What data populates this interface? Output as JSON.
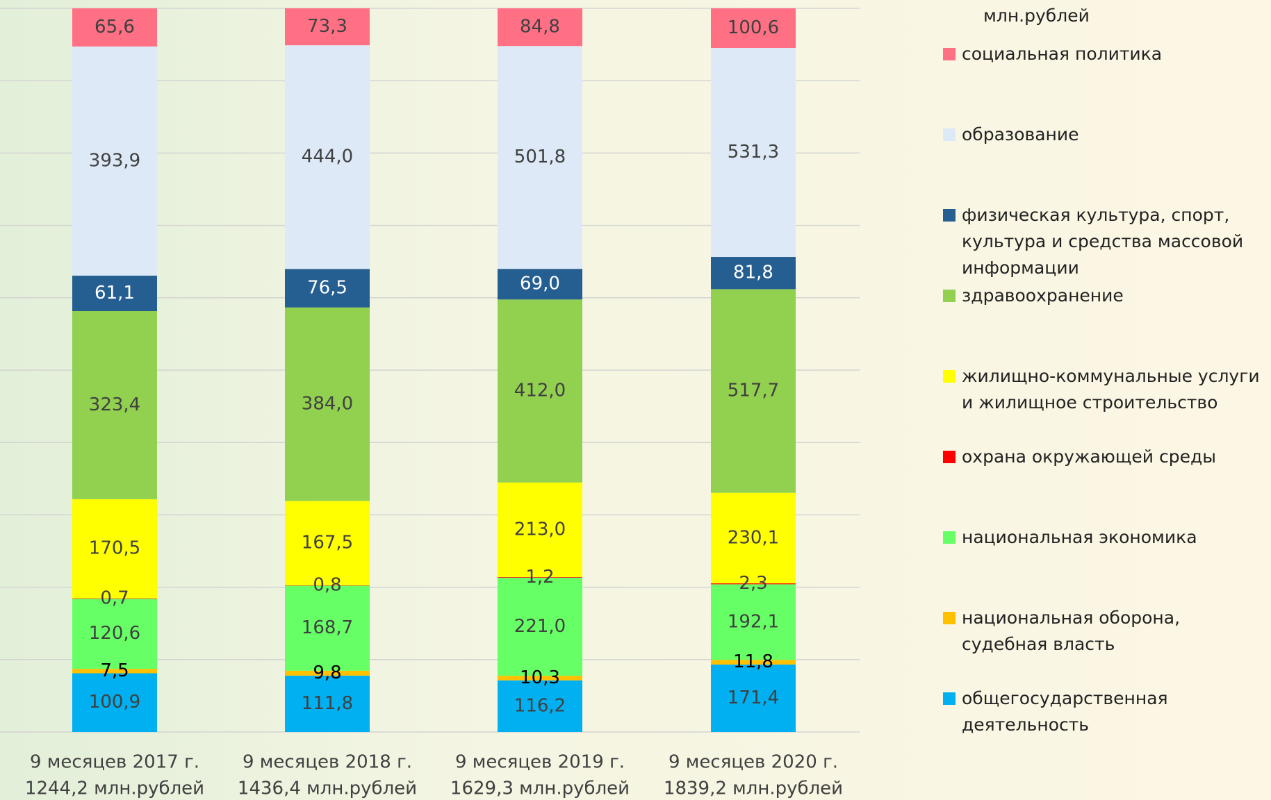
{
  "chart_data": {
    "type": "bar",
    "stacked": "percent",
    "unit": "млн.рублей",
    "categories": [
      "9 месяцев 2017 г.",
      "9 месяцев 2018 г.",
      "9 месяцев 2019 г.",
      "9 месяцев 2020 г."
    ],
    "category_totals": [
      "1244,2 млн.рублей",
      "1436,4 млн.рублей",
      "1629,3 млн.рублей",
      "1839,2 млн.рублей"
    ],
    "ylim": [
      0,
      100
    ],
    "yticks": [
      0,
      10,
      20,
      30,
      40,
      50,
      60,
      70,
      80,
      90,
      100
    ],
    "grid": true,
    "tick_labels": false,
    "legend": "right",
    "series": [
      {
        "name": "общегосударственная деятельность",
        "color": "#00b0f0",
        "label_color": "#404040",
        "values": [
          100.9,
          111.8,
          116.2,
          171.4
        ],
        "value_labels": [
          "100,9",
          "111,8",
          "116,2",
          "171,4"
        ]
      },
      {
        "name": "национальная оборона, судебная власть",
        "color": "#ffc000",
        "label_color": "#000000",
        "values": [
          7.5,
          9.8,
          10.3,
          11.8
        ],
        "value_labels": [
          "7,5",
          "9,8",
          "10,3",
          "11,8"
        ]
      },
      {
        "name": "национальная экономика",
        "color": "#66ff66",
        "label_color": "#404040",
        "values": [
          120.6,
          168.7,
          221.0,
          192.1
        ],
        "value_labels": [
          "120,6",
          "168,7",
          "221,0",
          "192,1"
        ]
      },
      {
        "name": "охрана окружающей среды",
        "color": "#ff0000",
        "label_color": "#404040",
        "values": [
          0.7,
          0.8,
          1.2,
          2.3
        ],
        "value_labels": [
          "0,7",
          "0,8",
          "1,2",
          "2,3"
        ]
      },
      {
        "name": "жилищно-коммунальные услуги и жилищное строительство",
        "color": "#ffff00",
        "label_color": "#404040",
        "values": [
          170.5,
          167.5,
          213.0,
          230.1
        ],
        "value_labels": [
          "170,5",
          "167,5",
          "213,0",
          "230,1"
        ]
      },
      {
        "name": "здравоохранение",
        "color": "#92d050",
        "label_color": "#404040",
        "values": [
          323.4,
          384.0,
          412.0,
          517.7
        ],
        "value_labels": [
          "323,4",
          "384,0",
          "412,0",
          "517,7"
        ]
      },
      {
        "name": "физическая культура, спорт, культура и средства массовой информации",
        "color": "#255e91",
        "label_color": "#ffffff",
        "values": [
          61.1,
          76.5,
          69.0,
          81.8
        ],
        "value_labels": [
          "61,1",
          "76,5",
          "69,0",
          "81,8"
        ]
      },
      {
        "name": "образование",
        "color": "#dde9f6",
        "label_color": "#404040",
        "values": [
          393.9,
          444.0,
          501.8,
          531.3
        ],
        "value_labels": [
          "393,9",
          "444,0",
          "501,8",
          "531,3"
        ]
      },
      {
        "name": "социальная политика",
        "color": "#ff7085",
        "label_color": "#404040",
        "values": [
          65.6,
          73.3,
          84.8,
          100.6
        ],
        "value_labels": [
          "65,6",
          "73,3",
          "84,8",
          "100,6"
        ]
      }
    ]
  }
}
